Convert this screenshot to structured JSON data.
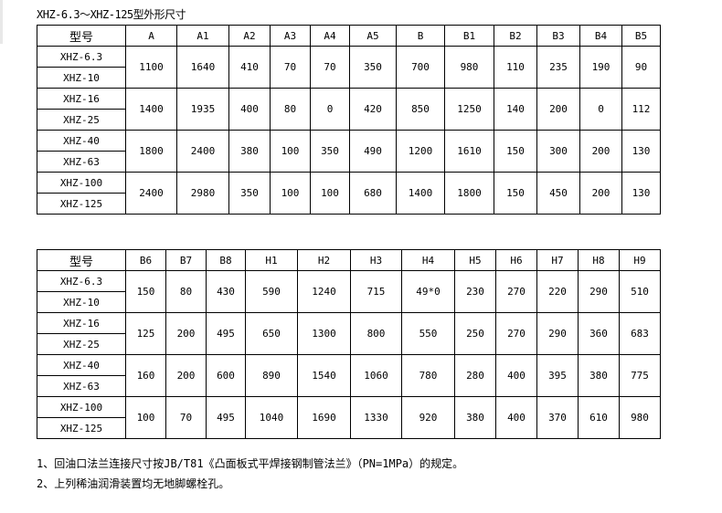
{
  "title": "XHZ-6.3～XHZ-125型外形尺寸",
  "table1": {
    "headers": [
      "型号",
      "A",
      "A1",
      "A2",
      "A3",
      "A4",
      "A5",
      "B",
      "B1",
      "B2",
      "B3",
      "B4",
      "B5"
    ],
    "groups": [
      {
        "models": [
          "XHZ-6.3",
          "XHZ-10"
        ],
        "values": [
          "1100",
          "1640",
          "410",
          "70",
          "70",
          "350",
          "700",
          "980",
          "110",
          "235",
          "190",
          "90"
        ]
      },
      {
        "models": [
          "XHZ-16",
          "XHZ-25"
        ],
        "values": [
          "1400",
          "1935",
          "400",
          "80",
          "0",
          "420",
          "850",
          "1250",
          "140",
          "200",
          "0",
          "112"
        ]
      },
      {
        "models": [
          "XHZ-40",
          "XHZ-63"
        ],
        "values": [
          "1800",
          "2400",
          "380",
          "100",
          "350",
          "490",
          "1200",
          "1610",
          "150",
          "300",
          "200",
          "130"
        ]
      },
      {
        "models": [
          "XHZ-100",
          "XHZ-125"
        ],
        "values": [
          "2400",
          "2980",
          "350",
          "100",
          "100",
          "680",
          "1400",
          "1800",
          "150",
          "450",
          "200",
          "130"
        ]
      }
    ]
  },
  "table2": {
    "headers": [
      "型号",
      "B6",
      "B7",
      "B8",
      "H1",
      "H2",
      "H3",
      "H4",
      "H5",
      "H6",
      "H7",
      "H8",
      "H9"
    ],
    "groups": [
      {
        "models": [
          "XHZ-6.3",
          "XHZ-10"
        ],
        "values": [
          "150",
          "80",
          "430",
          "590",
          "1240",
          "715",
          "49*0",
          "230",
          "270",
          "220",
          "290",
          "510"
        ]
      },
      {
        "models": [
          "XHZ-16",
          "XHZ-25"
        ],
        "values": [
          "125",
          "200",
          "495",
          "650",
          "1300",
          "800",
          "550",
          "250",
          "270",
          "290",
          "360",
          "683"
        ]
      },
      {
        "models": [
          "XHZ-40",
          "XHZ-63"
        ],
        "values": [
          "160",
          "200",
          "600",
          "890",
          "1540",
          "1060",
          "780",
          "280",
          "400",
          "395",
          "380",
          "775"
        ]
      },
      {
        "models": [
          "XHZ-100",
          "XHZ-125"
        ],
        "values": [
          "100",
          "70",
          "495",
          "1040",
          "1690",
          "1330",
          "920",
          "380",
          "400",
          "370",
          "610",
          "980"
        ]
      }
    ]
  },
  "notes": [
    "1、回油口法兰连接尺寸按JB/T81《凸面板式平焊接钢制管法兰》（PN=1MPa）的规定。",
    "2、上列稀油润滑装置均无地脚螺栓孔。"
  ]
}
